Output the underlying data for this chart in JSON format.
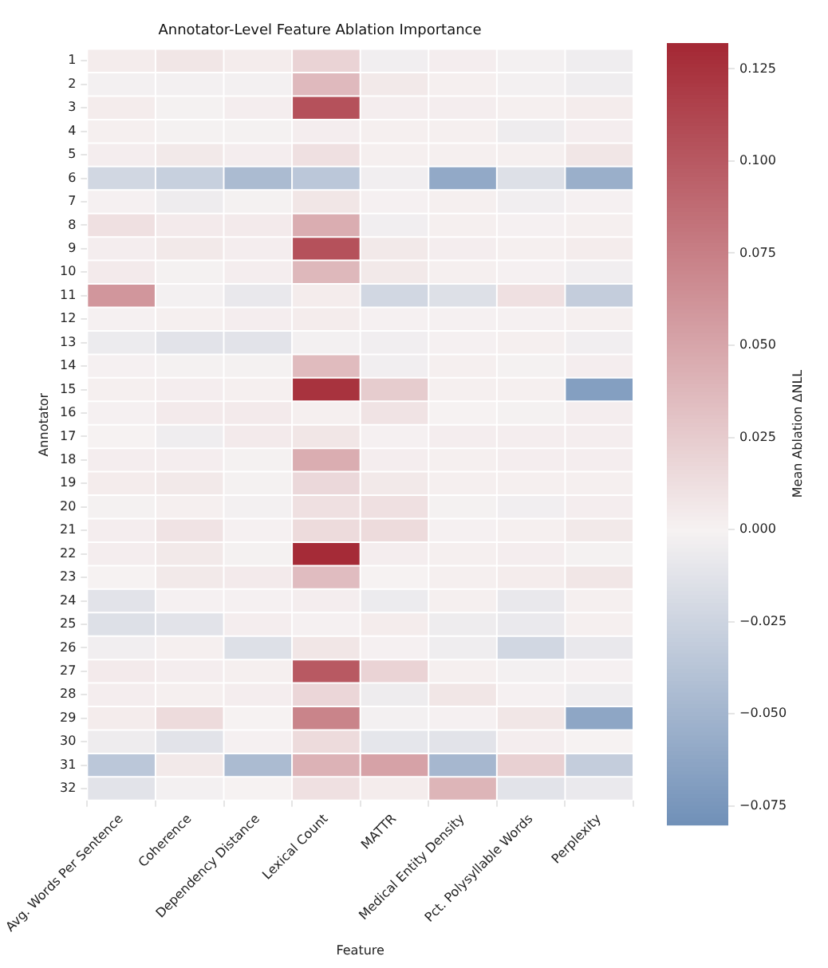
{
  "chart_data": {
    "type": "heatmap",
    "title": "Annotator-Level Feature Ablation Importance",
    "xlabel": "Feature",
    "ylabel": "Annotator",
    "clabel": "Mean Ablation ΔNLL",
    "categories": [
      "Avg. Words Per Sentence",
      "Coherence",
      "Dependency Distance",
      "Lexical Count",
      "MATTR",
      "Medical Entity Density",
      "Pct. Polysyllable Words",
      "Perplexity"
    ],
    "y_categories": [
      "1",
      "2",
      "3",
      "4",
      "5",
      "6",
      "7",
      "8",
      "9",
      "10",
      "11",
      "12",
      "13",
      "14",
      "15",
      "16",
      "17",
      "18",
      "19",
      "20",
      "21",
      "22",
      "23",
      "24",
      "25",
      "26",
      "27",
      "28",
      "29",
      "30",
      "31",
      "32"
    ],
    "cells": [
      [
        0.004,
        0.008,
        0.004,
        0.02,
        -0.003,
        0.003,
        -0.002,
        -0.004
      ],
      [
        -0.002,
        -0.002,
        -0.002,
        0.037,
        0.006,
        0.002,
        -0.002,
        -0.004
      ],
      [
        0.004,
        -0.001,
        0.003,
        0.105,
        0.003,
        0.003,
        0.002,
        0.004
      ],
      [
        0.002,
        -0.001,
        -0.001,
        0.003,
        0.002,
        0.002,
        -0.005,
        0.003
      ],
      [
        0.003,
        0.006,
        0.003,
        0.012,
        0.002,
        0.002,
        0.002,
        0.008
      ],
      [
        -0.022,
        -0.028,
        -0.045,
        -0.035,
        -0.003,
        -0.06,
        -0.015,
        -0.055
      ],
      [
        0.001,
        -0.005,
        -0.001,
        0.008,
        0.001,
        0.002,
        -0.003,
        0.001
      ],
      [
        0.012,
        0.005,
        0.005,
        0.045,
        -0.003,
        0.002,
        0.001,
        0.002
      ],
      [
        0.003,
        0.006,
        0.003,
        0.105,
        0.006,
        0.003,
        0.002,
        0.004
      ],
      [
        0.005,
        -0.001,
        0.003,
        0.038,
        0.006,
        0.002,
        0.001,
        -0.003
      ],
      [
        0.06,
        -0.002,
        -0.008,
        0.004,
        -0.022,
        -0.015,
        0.012,
        -0.03
      ],
      [
        0.001,
        0.002,
        0.003,
        0.004,
        0.001,
        0.001,
        0.001,
        0.002
      ],
      [
        -0.006,
        -0.012,
        -0.012,
        -0.002,
        -0.003,
        0.001,
        0.002,
        -0.003
      ],
      [
        0.001,
        -0.001,
        -0.001,
        0.036,
        -0.003,
        0.002,
        -0.001,
        0.003
      ],
      [
        0.002,
        0.003,
        0.002,
        0.125,
        0.025,
        0.002,
        0.002,
        -0.068
      ],
      [
        0.001,
        0.005,
        0.005,
        0.002,
        0.01,
        0.0,
        -0.001,
        0.003
      ],
      [
        0.0,
        -0.004,
        0.005,
        0.008,
        0.001,
        0.003,
        0.003,
        0.003
      ],
      [
        0.003,
        0.003,
        -0.001,
        0.045,
        0.003,
        0.002,
        0.003,
        0.003
      ],
      [
        0.004,
        0.006,
        -0.001,
        0.017,
        0.006,
        0.002,
        0.002,
        0.002
      ],
      [
        -0.001,
        0.002,
        -0.002,
        0.012,
        0.012,
        -0.001,
        -0.003,
        0.003
      ],
      [
        0.003,
        0.01,
        0.001,
        0.015,
        0.015,
        0.001,
        0.002,
        0.006
      ],
      [
        0.003,
        0.006,
        -0.001,
        0.13,
        0.003,
        0.002,
        0.003,
        -0.001
      ],
      [
        0.0,
        0.006,
        0.005,
        0.035,
        0.0,
        0.002,
        0.004,
        0.008
      ],
      [
        -0.012,
        0.001,
        0.001,
        0.003,
        -0.006,
        0.002,
        -0.008,
        0.002
      ],
      [
        -0.015,
        -0.012,
        0.003,
        0.001,
        0.004,
        -0.005,
        -0.007,
        0.002
      ],
      [
        -0.003,
        0.002,
        -0.015,
        0.008,
        0.001,
        -0.004,
        -0.022,
        -0.008
      ],
      [
        0.005,
        0.003,
        0.002,
        0.1,
        0.02,
        0.002,
        -0.002,
        0.001
      ],
      [
        0.003,
        0.002,
        0.003,
        0.018,
        -0.005,
        0.008,
        0.001,
        -0.004
      ],
      [
        0.004,
        0.015,
        0.0,
        0.072,
        -0.002,
        0.001,
        0.008,
        -0.062
      ],
      [
        -0.005,
        -0.012,
        0.001,
        0.015,
        -0.01,
        -0.012,
        0.003,
        0.0
      ],
      [
        -0.035,
        0.006,
        -0.045,
        0.042,
        0.052,
        -0.048,
        0.022,
        -0.03
      ],
      [
        -0.012,
        -0.002,
        0.0,
        0.012,
        0.004,
        0.04,
        -0.012,
        -0.007
      ]
    ],
    "clim": [
      -0.08,
      0.132
    ],
    "cticks": [
      {
        "value": 0.125,
        "label": "0.125"
      },
      {
        "value": 0.1,
        "label": "0.100"
      },
      {
        "value": 0.075,
        "label": "0.075"
      },
      {
        "value": 0.05,
        "label": "0.050"
      },
      {
        "value": 0.025,
        "label": "0.025"
      },
      {
        "value": 0,
        "label": "0.000"
      },
      {
        "value": -0.025,
        "label": "−0.025"
      },
      {
        "value": -0.05,
        "label": "−0.050"
      },
      {
        "value": -0.075,
        "label": "−0.075"
      }
    ]
  }
}
